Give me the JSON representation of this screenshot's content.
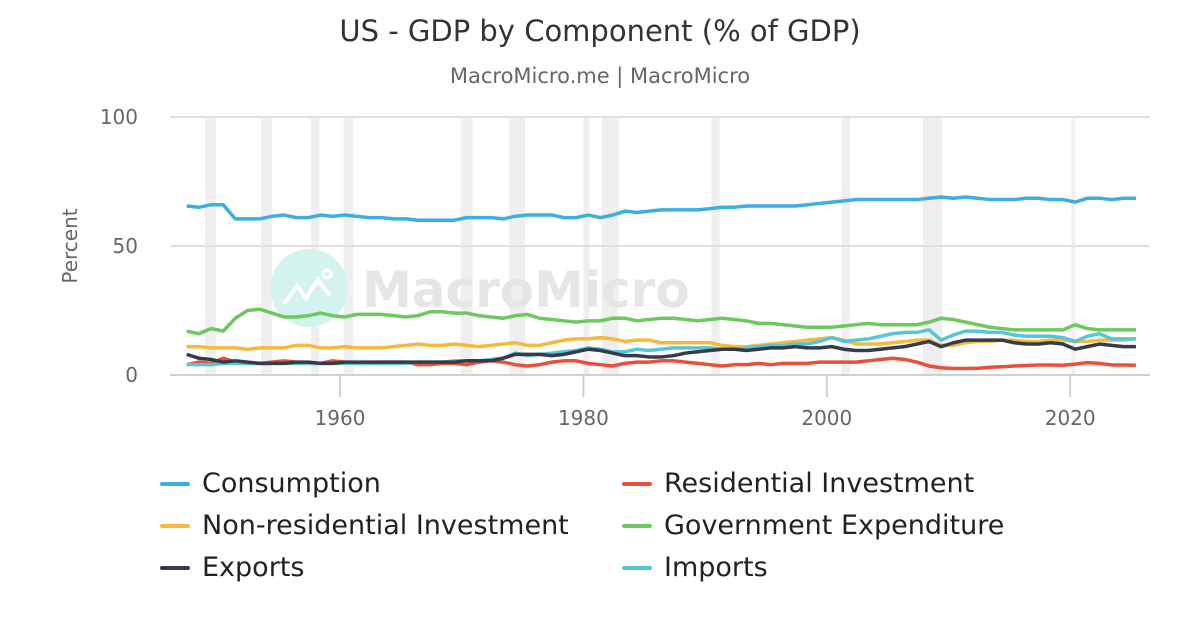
{
  "chart_data": {
    "type": "line",
    "title": "US - GDP by Component (% of GDP)",
    "subtitle": "MacroMicro.me | MacroMicro",
    "watermark": "MacroMicro",
    "xlabel": "",
    "ylabel": "Percent",
    "ylim": [
      0,
      100
    ],
    "yticks": [
      "0",
      "50",
      "100"
    ],
    "xlim": [
      1947,
      2026
    ],
    "xticks": [
      "1960",
      "1980",
      "2000",
      "2020"
    ],
    "grid": true,
    "legend_position": "bottom",
    "recession_shading": [
      [
        1948.9,
        1949.8
      ],
      [
        1953.5,
        1954.4
      ],
      [
        1957.6,
        1958.3
      ],
      [
        1960.3,
        1961.1
      ],
      [
        1969.9,
        1970.9
      ],
      [
        1973.9,
        1975.2
      ],
      [
        1980.0,
        1980.5
      ],
      [
        1981.5,
        1982.9
      ],
      [
        1990.5,
        1991.2
      ],
      [
        2001.2,
        2001.9
      ],
      [
        2007.9,
        2009.5
      ],
      [
        2020.1,
        2020.4
      ]
    ],
    "x": [
      1947,
      1948,
      1949,
      1950,
      1951,
      1952,
      1953,
      1954,
      1955,
      1956,
      1957,
      1958,
      1959,
      1960,
      1961,
      1962,
      1963,
      1964,
      1965,
      1966,
      1967,
      1968,
      1969,
      1970,
      1971,
      1972,
      1973,
      1974,
      1975,
      1976,
      1977,
      1978,
      1979,
      1980,
      1981,
      1982,
      1983,
      1984,
      1985,
      1986,
      1987,
      1988,
      1989,
      1990,
      1991,
      1992,
      1993,
      1994,
      1995,
      1996,
      1997,
      1998,
      1999,
      2000,
      2001,
      2002,
      2003,
      2004,
      2005,
      2006,
      2007,
      2008,
      2009,
      2010,
      2011,
      2012,
      2013,
      2014,
      2015,
      2016,
      2017,
      2018,
      2019,
      2020,
      2021,
      2022,
      2023,
      2024,
      2025
    ],
    "series": [
      {
        "name": "Consumption",
        "color": "#3daee0",
        "values": [
          65.5,
          65,
          66,
          66,
          60.5,
          60.5,
          60.5,
          61.5,
          62,
          61,
          61,
          62,
          61.5,
          62,
          61.5,
          61,
          61,
          60.5,
          60.5,
          60,
          60,
          60,
          60,
          61,
          61,
          61,
          60.5,
          61.5,
          62,
          62,
          62,
          61,
          61,
          62,
          61,
          62,
          63.5,
          63,
          63.5,
          64,
          64,
          64,
          64,
          64.5,
          65,
          65,
          65.5,
          65.5,
          65.5,
          65.5,
          65.5,
          66,
          66.5,
          67,
          67.5,
          68,
          68,
          68,
          68,
          68,
          68,
          68.5,
          69,
          68.5,
          69,
          68.5,
          68,
          68,
          68,
          68.5,
          68.5,
          68,
          68,
          67,
          68.5,
          68.5,
          68,
          68.5,
          68.5
        ]
      },
      {
        "name": "Residential Investment",
        "color": "#e8503a",
        "values": [
          4,
          5,
          4.5,
          6.5,
          5,
          4.5,
          4.5,
          5,
          5.5,
          5,
          4.5,
          4.5,
          5.5,
          5,
          4.5,
          4.5,
          5,
          5,
          5,
          4,
          4,
          4.5,
          4.5,
          4,
          5,
          5.5,
          5,
          4,
          3.5,
          4,
          5,
          5.5,
          5.5,
          4.5,
          4,
          3.5,
          4.5,
          5,
          5,
          5.5,
          5.5,
          5,
          4.5,
          4,
          3.5,
          4,
          4,
          4.5,
          4,
          4.5,
          4.5,
          4.5,
          5,
          5,
          5,
          5,
          5.5,
          6,
          6.5,
          6,
          5,
          3.5,
          2.8,
          2.5,
          2.5,
          2.6,
          3,
          3.2,
          3.5,
          3.7,
          3.9,
          3.9,
          3.8,
          4.2,
          4.8,
          4.5,
          3.9,
          3.9,
          3.8
        ]
      },
      {
        "name": "Non-residential Investment",
        "color": "#f7b93c",
        "values": [
          11,
          11,
          10.5,
          10.5,
          10.5,
          10,
          10.5,
          10.5,
          10.5,
          11.5,
          11.5,
          10.5,
          10.5,
          11,
          10.5,
          10.5,
          10.5,
          11,
          11.5,
          12,
          11.5,
          11.5,
          12,
          11.5,
          11,
          11.5,
          12,
          12.5,
          11.5,
          11.5,
          12.5,
          13.5,
          14,
          14,
          14.5,
          14,
          13,
          13.5,
          13.5,
          12.5,
          12.5,
          12.5,
          12.5,
          12.5,
          11.5,
          11,
          11,
          11.5,
          12,
          12.5,
          13,
          13.5,
          14,
          14.5,
          13.5,
          12,
          12,
          12,
          12.5,
          13,
          13.5,
          13.5,
          11.5,
          11.5,
          12.5,
          13,
          13,
          13.5,
          13.5,
          13,
          13,
          13.5,
          13.5,
          13,
          13,
          13.5,
          13.5,
          13.5,
          14
        ]
      },
      {
        "name": "Government Expenditure",
        "color": "#6cc95e",
        "values": [
          17,
          16,
          18,
          17,
          22,
          25,
          25.5,
          24,
          22.5,
          22.5,
          23,
          24,
          23,
          22.5,
          23.5,
          23.5,
          23.5,
          23,
          22.5,
          23,
          24.5,
          24.5,
          24,
          24,
          23,
          22.5,
          22,
          23,
          23.5,
          22,
          21.5,
          21,
          20.5,
          21,
          21,
          22,
          22,
          21,
          21.5,
          22,
          22,
          21.5,
          21,
          21.5,
          22,
          21.5,
          21,
          20,
          20,
          19.5,
          19,
          18.5,
          18.5,
          18.5,
          19,
          19.5,
          20,
          19.5,
          19.5,
          19.5,
          19.5,
          20.5,
          22,
          21.5,
          20.5,
          19.5,
          18.5,
          18,
          17.5,
          17.5,
          17.5,
          17.5,
          17.5,
          19.5,
          18,
          17.5,
          17.5,
          17.5,
          17.5
        ]
      },
      {
        "name": "Exports",
        "color": "#363b4b",
        "values": [
          8,
          6.5,
          6,
          5,
          5.5,
          5,
          4.5,
          4.5,
          4.5,
          5,
          5,
          4.5,
          4.5,
          5,
          5,
          5,
          5,
          5,
          5,
          5,
          5,
          5,
          5,
          5.5,
          5.5,
          5.5,
          6.5,
          8,
          8,
          8,
          7.5,
          8,
          9,
          10,
          9.5,
          8.5,
          7.5,
          7.5,
          7,
          7,
          7.5,
          8.5,
          9,
          9.5,
          10,
          10,
          9.5,
          10,
          10.5,
          10.5,
          11,
          10.5,
          10.5,
          11,
          10,
          9.5,
          9.5,
          10,
          10.5,
          11,
          12,
          13,
          11,
          12.5,
          13.5,
          13.5,
          13.5,
          13.5,
          12.5,
          12,
          12,
          12.5,
          12,
          10,
          11,
          12,
          11.5,
          11,
          11
        ]
      },
      {
        "name": "Imports",
        "color": "#55c6d8",
        "values": [
          4,
          4,
          4,
          4.5,
          4.5,
          4.5,
          4.5,
          4.5,
          4.5,
          4.5,
          4.5,
          4.5,
          4.5,
          4.5,
          4.5,
          4.5,
          4.5,
          4.5,
          4.5,
          5,
          5,
          5,
          5.5,
          5.5,
          5.5,
          6,
          6.5,
          8.5,
          7.5,
          8,
          8.5,
          9,
          9.5,
          10.5,
          10,
          9,
          9,
          10,
          9.5,
          10,
          10.5,
          10.5,
          10.5,
          10.5,
          10,
          10,
          10.5,
          11,
          11.5,
          11.5,
          12,
          12,
          13,
          14.5,
          13,
          13.5,
          14,
          15,
          16,
          16.5,
          16.5,
          17.5,
          13.5,
          15.5,
          17,
          17,
          16.5,
          16.5,
          15.5,
          15,
          15,
          15,
          14.5,
          13,
          15,
          16,
          14,
          14,
          14
        ]
      }
    ]
  }
}
